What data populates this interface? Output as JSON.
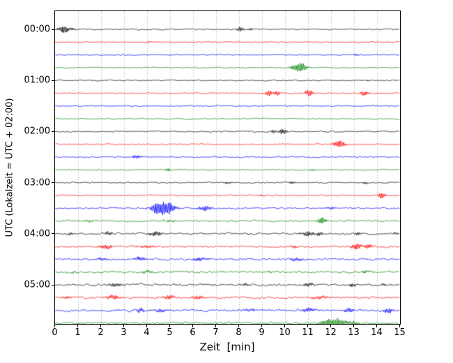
{
  "chart_data": {
    "type": "line",
    "title": "",
    "xlabel": "Zeit  [min]",
    "ylabel": "UTC (Lokalzeit = UTC + 02:00)",
    "xlim": [
      0,
      15
    ],
    "x_tick_labels": [
      "0",
      "1",
      "2",
      "3",
      "4",
      "5",
      "6",
      "7",
      "8",
      "9",
      "10",
      "11",
      "12",
      "13",
      "14",
      "15"
    ],
    "y_tick_labels": [
      "00:00",
      "01:00",
      "02:00",
      "03:00",
      "04:00",
      "05:00"
    ],
    "trace_interval_min": 15,
    "grid": {
      "style": "dotted",
      "color": "#999999",
      "orientation": "vertical"
    },
    "legend": "none",
    "color_cycle": [
      "#000000",
      "#ff0000",
      "#0000ff",
      "#008000"
    ],
    "traces": [
      {
        "start": "00:00",
        "color": "#000000",
        "noise": 0.9,
        "events": [
          {
            "x": 0.35,
            "a": 6,
            "w": 0.15
          },
          {
            "x": 0.75,
            "a": 2,
            "w": 0.12
          },
          {
            "x": 8.05,
            "a": 3.5,
            "w": 0.12
          },
          {
            "x": 8.5,
            "a": 2,
            "w": 0.07
          }
        ]
      },
      {
        "start": "00:15",
        "color": "#ff0000",
        "noise": 0.65,
        "events": [
          {
            "x": 4.1,
            "a": 1.2,
            "w": 0.08
          }
        ]
      },
      {
        "start": "00:30",
        "color": "#0000ff",
        "noise": 0.65,
        "events": [
          {
            "x": 13.1,
            "a": 1.4,
            "w": 0.1
          }
        ]
      },
      {
        "start": "00:45",
        "color": "#008000",
        "noise": 0.75,
        "events": [
          {
            "x": 10.65,
            "a": 7,
            "w": 0.2
          },
          {
            "x": 10.3,
            "a": 2,
            "w": 0.08
          }
        ]
      },
      {
        "start": "01:00",
        "color": "#000000",
        "noise": 0.75,
        "events": [
          {
            "x": 13.6,
            "a": 1,
            "w": 0.1
          }
        ]
      },
      {
        "start": "01:15",
        "color": "#ff0000",
        "noise": 0.85,
        "events": [
          {
            "x": 9.3,
            "a": 4.5,
            "w": 0.1
          },
          {
            "x": 9.65,
            "a": 4,
            "w": 0.09
          },
          {
            "x": 11.05,
            "a": 5.5,
            "w": 0.12
          },
          {
            "x": 13.45,
            "a": 4.5,
            "w": 0.12
          }
        ]
      },
      {
        "start": "01:30",
        "color": "#0000ff",
        "noise": 0.7,
        "events": []
      },
      {
        "start": "01:45",
        "color": "#008000",
        "noise": 0.75,
        "events": [
          {
            "x": 6,
            "a": 0.8,
            "w": 0.1
          }
        ]
      },
      {
        "start": "02:00",
        "color": "#000000",
        "noise": 0.85,
        "events": [
          {
            "x": 9.5,
            "a": 2.5,
            "w": 0.09
          },
          {
            "x": 9.9,
            "a": 4.5,
            "w": 0.12
          }
        ]
      },
      {
        "start": "02:15",
        "color": "#ff0000",
        "noise": 0.85,
        "events": [
          {
            "x": 12.35,
            "a": 5.5,
            "w": 0.18
          }
        ]
      },
      {
        "start": "02:30",
        "color": "#0000ff",
        "noise": 0.85,
        "events": [
          {
            "x": 3.55,
            "a": 3,
            "w": 0.15
          },
          {
            "x": 7,
            "a": 0.9,
            "w": 0.1
          }
        ]
      },
      {
        "start": "02:45",
        "color": "#008000",
        "noise": 0.85,
        "events": [
          {
            "x": 4.9,
            "a": 2.8,
            "w": 0.09
          },
          {
            "x": 11.2,
            "a": 1.8,
            "w": 0.12
          }
        ]
      },
      {
        "start": "03:00",
        "color": "#000000",
        "noise": 0.95,
        "events": [
          {
            "x": 7.5,
            "a": 1.8,
            "w": 0.12
          },
          {
            "x": 10.3,
            "a": 2.2,
            "w": 0.1
          },
          {
            "x": 13.5,
            "a": 2.6,
            "w": 0.08
          }
        ]
      },
      {
        "start": "03:15",
        "color": "#ff0000",
        "noise": 0.95,
        "events": [
          {
            "x": 9,
            "a": 1.4,
            "w": 0.1
          },
          {
            "x": 14.2,
            "a": 4.5,
            "w": 0.12
          }
        ]
      },
      {
        "start": "03:30",
        "color": "#0000ff",
        "noise": 1.15,
        "events": [
          {
            "x": 4.35,
            "a": 3.5,
            "w": 0.12
          },
          {
            "x": 4.75,
            "a": 12,
            "w": 0.3
          },
          {
            "x": 6.5,
            "a": 3.5,
            "w": 0.2
          },
          {
            "x": 12,
            "a": 1.8,
            "w": 0.15
          }
        ]
      },
      {
        "start": "03:45",
        "color": "#008000",
        "noise": 1.25,
        "events": [
          {
            "x": 1.5,
            "a": 1.8,
            "w": 0.15
          },
          {
            "x": 5,
            "a": 1.6,
            "w": 0.2
          },
          {
            "x": 11.6,
            "a": 6,
            "w": 0.12
          }
        ]
      },
      {
        "start": "04:00",
        "color": "#000000",
        "noise": 1.35,
        "events": [
          {
            "x": 0.7,
            "a": 2.2,
            "w": 0.1
          },
          {
            "x": 2.3,
            "a": 2.6,
            "w": 0.15
          },
          {
            "x": 4.35,
            "a": 3.5,
            "w": 0.2
          },
          {
            "x": 11,
            "a": 3.5,
            "w": 0.2
          },
          {
            "x": 11.5,
            "a": 2.6,
            "w": 0.1
          },
          {
            "x": 13.2,
            "a": 2.8,
            "w": 0.1
          },
          {
            "x": 14.8,
            "a": 1.8,
            "w": 0.1
          }
        ]
      },
      {
        "start": "04:15",
        "color": "#ff0000",
        "noise": 1.35,
        "events": [
          {
            "x": 2.2,
            "a": 3.5,
            "w": 0.2
          },
          {
            "x": 4,
            "a": 1.8,
            "w": 0.3
          },
          {
            "x": 10.4,
            "a": 1.8,
            "w": 0.15
          },
          {
            "x": 13.1,
            "a": 5,
            "w": 0.15
          },
          {
            "x": 13.6,
            "a": 4,
            "w": 0.12
          }
        ]
      },
      {
        "start": "04:30",
        "color": "#0000ff",
        "noise": 1.45,
        "events": [
          {
            "x": 2,
            "a": 1.8,
            "w": 0.2
          },
          {
            "x": 3.7,
            "a": 3.5,
            "w": 0.15
          },
          {
            "x": 6.3,
            "a": 2.6,
            "w": 0.25
          },
          {
            "x": 10.5,
            "a": 2.6,
            "w": 0.2
          }
        ]
      },
      {
        "start": "04:45",
        "color": "#008000",
        "noise": 1.45,
        "events": [
          {
            "x": 0.9,
            "a": 1.4,
            "w": 0.1
          },
          {
            "x": 4,
            "a": 1.8,
            "w": 0.2
          },
          {
            "x": 9.3,
            "a": 1.4,
            "w": 0.15
          },
          {
            "x": 13.5,
            "a": 1.8,
            "w": 0.15
          }
        ]
      },
      {
        "start": "05:00",
        "color": "#000000",
        "noise": 1.45,
        "events": [
          {
            "x": 2.6,
            "a": 2.8,
            "w": 0.2
          },
          {
            "x": 8.3,
            "a": 1.8,
            "w": 0.15
          },
          {
            "x": 11,
            "a": 3,
            "w": 0.15
          },
          {
            "x": 12.9,
            "a": 2.8,
            "w": 0.12
          },
          {
            "x": 14.3,
            "a": 1.8,
            "w": 0.1
          }
        ]
      },
      {
        "start": "05:15",
        "color": "#ff0000",
        "noise": 1.45,
        "events": [
          {
            "x": 0.5,
            "a": 1.8,
            "w": 0.15
          },
          {
            "x": 2.5,
            "a": 3.5,
            "w": 0.2
          },
          {
            "x": 5,
            "a": 2.6,
            "w": 0.25
          },
          {
            "x": 6.2,
            "a": 2.6,
            "w": 0.2
          },
          {
            "x": 11.5,
            "a": 2.2,
            "w": 0.3
          }
        ]
      },
      {
        "start": "05:30",
        "color": "#0000ff",
        "noise": 1.55,
        "events": [
          {
            "x": 3.7,
            "a": 4.5,
            "w": 0.1
          },
          {
            "x": 4.6,
            "a": 2.6,
            "w": 0.2
          },
          {
            "x": 8.5,
            "a": 1.8,
            "w": 0.2
          },
          {
            "x": 11,
            "a": 3.5,
            "w": 0.2
          },
          {
            "x": 12.8,
            "a": 3.5,
            "w": 0.15
          },
          {
            "x": 14.5,
            "a": 4.5,
            "w": 0.15
          }
        ]
      },
      {
        "start": "05:45",
        "color": "#008000",
        "noise": 1.55,
        "events": [
          {
            "x": 11.8,
            "a": 4,
            "w": 0.2
          },
          {
            "x": 12.25,
            "a": 9,
            "w": 0.25
          },
          {
            "x": 13,
            "a": 2.6,
            "w": 0.2
          }
        ]
      }
    ]
  }
}
